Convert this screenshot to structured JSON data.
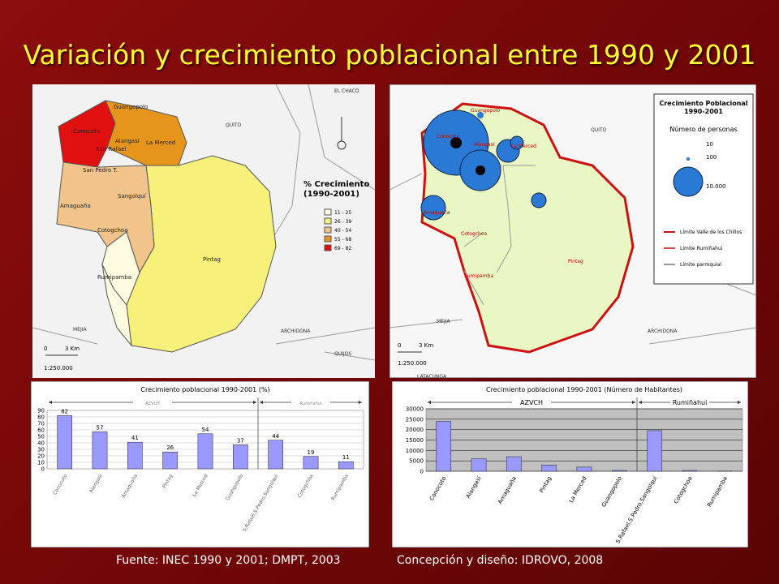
{
  "title": "Variación y crecimiento poblacional entre 1990 y 2001",
  "footer": {
    "source": "Fuente: INEC 1990 y 2001; DMPT, 2003",
    "credit": "Concepción y diseño: IDROVO, 2008"
  },
  "map_left": {
    "places": [
      "Guangopolo",
      "Conocoto",
      "Alangasí",
      "La Merced",
      "San Rafael",
      "San Pedro T.",
      "Sangolquí",
      "Amaguaña",
      "Cotogchoa",
      "Pintag",
      "Rumipamba"
    ],
    "surroundings": [
      "EL CHACO",
      "QUITO",
      "MEJIA",
      "ARCHIDONA",
      "QUIJOS"
    ],
    "legend": {
      "title": "% Crecimiento",
      "subtitle": "(1990-2001)",
      "items": [
        {
          "label": "11 - 25",
          "color": "#fffbe0"
        },
        {
          "label": "26 - 39",
          "color": "#f7f07a"
        },
        {
          "label": "40 - 54",
          "color": "#f0c48a"
        },
        {
          "label": "55 - 68",
          "color": "#e5951c"
        },
        {
          "label": "69 - 82",
          "color": "#e01010"
        }
      ]
    },
    "scale": {
      "zero": "0",
      "km": "3 Km",
      "ratio": "1:250.000"
    }
  },
  "map_right": {
    "places": [
      "Guangopolo",
      "Conocoto",
      "Alangasí",
      "La Merced",
      "Amaguaña",
      "Cotogchoa",
      "Rumipamba",
      "Pintag"
    ],
    "surroundings": [
      "QUITO",
      "MEJIA",
      "ARCHIDONA",
      "LATACUNGA"
    ],
    "legend": {
      "title": "Crecimiento Poblacional",
      "subtitle": "1990-2001",
      "heading": "Número de personas",
      "sizes": [
        "10",
        "100",
        "10.000"
      ],
      "lines": [
        {
          "label": "Límite Valle de los Chillos",
          "color": "#cc1111"
        },
        {
          "label": "Límite Rumiñahui",
          "color": "#e04040"
        },
        {
          "label": "Límite parroquial",
          "color": "#999999"
        }
      ]
    },
    "scale": {
      "zero": "0",
      "km": "3 Km",
      "ratio": "1:250.000"
    }
  },
  "chart_data": [
    {
      "type": "bar",
      "title": "Crecimiento poblacional 1990-2001 (%)",
      "categories": [
        "Conocoto",
        "Alangasí",
        "Amaguaña",
        "Pintag",
        "La Merced",
        "Guangopolo",
        "S.Rafael,S.Pedro,Sangolquí",
        "Cotogchoa",
        "Rumipamba"
      ],
      "values": [
        82,
        57,
        41,
        26,
        54,
        37,
        44,
        19,
        11
      ],
      "group_labels": [
        "AZVCH",
        "Rumiñahui"
      ],
      "color": "#9999ff",
      "ylim": [
        0,
        90
      ],
      "yticks": [
        0,
        10,
        20,
        30,
        40,
        50,
        60,
        70,
        80,
        90
      ],
      "grid": true
    },
    {
      "type": "bar",
      "title": "Crecimiento poblacional 1990-2001 (Número de Habitantes)",
      "categories": [
        "Conocoto",
        "Alangasí",
        "Amaguaña",
        "Pintag",
        "La Merced",
        "Guangopolo",
        "S.Rafael,S.Pedro,Sangolquí",
        "Cotogchoa",
        "Rumipamba"
      ],
      "values": [
        24000,
        6000,
        7000,
        3000,
        2000,
        400,
        19500,
        400,
        100
      ],
      "group_labels": [
        "AZVCH",
        "Rumiñahui"
      ],
      "color": "#9999ff",
      "ylim": [
        0,
        30000
      ],
      "yticks": [
        0,
        5000,
        10000,
        15000,
        20000,
        25000,
        30000
      ],
      "grid": true
    }
  ]
}
